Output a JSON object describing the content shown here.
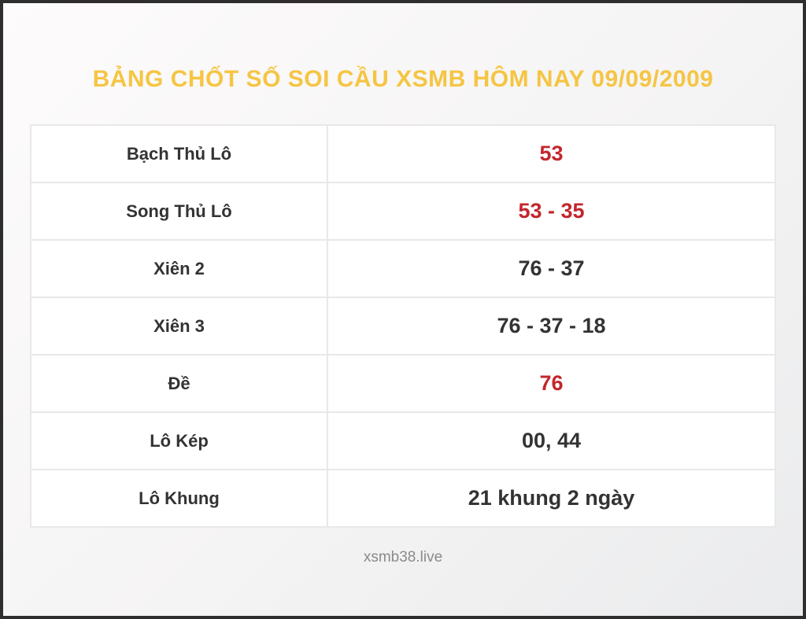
{
  "page": {
    "title": "BẢNG CHỐT SỐ SOI CẦU XSMB HÔM NAY 09/09/2009",
    "footer": "xsmb38.live",
    "colors": {
      "title_gold": "#f5c543",
      "value_red": "#c3262c",
      "text_dark": "#333333",
      "cell_border": "#e8e8e8",
      "frame_border": "#2e2e2e"
    }
  },
  "table": {
    "rows": [
      {
        "label": "Bạch Thủ Lô",
        "value": "53",
        "highlight": true
      },
      {
        "label": "Song Thủ Lô",
        "value": "53 - 35",
        "highlight": true
      },
      {
        "label": "Xiên 2",
        "value": "76 - 37",
        "highlight": false
      },
      {
        "label": "Xiên 3",
        "value": "76 - 37 - 18",
        "highlight": false
      },
      {
        "label": "Đề",
        "value": "76",
        "highlight": true
      },
      {
        "label": "Lô Kép",
        "value": "00, 44",
        "highlight": false
      },
      {
        "label": "Lô Khung",
        "value": "21 khung 2 ngày",
        "highlight": false
      }
    ]
  }
}
